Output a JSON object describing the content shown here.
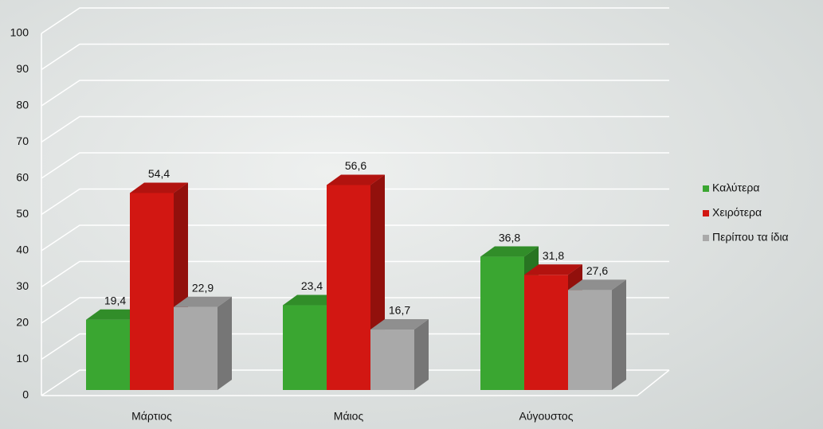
{
  "chart_data": {
    "type": "bar3d",
    "categories": [
      "Μάρτιος",
      "Μάιος",
      "Αύγουστος"
    ],
    "series": [
      {
        "name": "Καλύτερα",
        "color": "#3aa631",
        "values": [
          19.4,
          23.4,
          36.8
        ],
        "value_labels": [
          "19,4",
          "23,4",
          "36,8"
        ]
      },
      {
        "name": "Χειρότερα",
        "color": "#d21712",
        "values": [
          54.4,
          56.6,
          31.8
        ],
        "value_labels": [
          "54,4",
          "56,6",
          "31,8"
        ]
      },
      {
        "name": "Περίπου τα ίδια",
        "color": "#a9a9a9",
        "values": [
          22.9,
          16.7,
          27.6
        ],
        "value_labels": [
          "22,9",
          "16,7",
          "27,6"
        ]
      }
    ],
    "ylim": [
      0,
      100
    ],
    "yticks": [
      0,
      10,
      20,
      30,
      40,
      50,
      60,
      70,
      80,
      90,
      100
    ],
    "grid": true,
    "legend": "right"
  }
}
